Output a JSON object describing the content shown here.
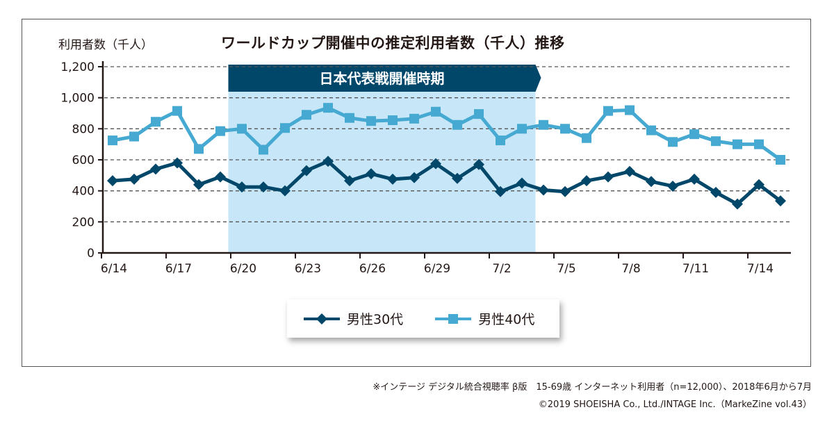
{
  "chart_data": {
    "type": "line",
    "title": "ワールドカップ開催中の推定利用者数（千人）推移",
    "ylabel": "利用者数（千人）",
    "xlabel": "",
    "ylim": [
      0,
      1200
    ],
    "yticks": [
      "0",
      "200",
      "400",
      "600",
      "800",
      "1,000",
      "1,200"
    ],
    "ytick_values": [
      0,
      200,
      400,
      600,
      800,
      1000,
      1200
    ],
    "grid": true,
    "x": [
      "6/14",
      "6/15",
      "6/16",
      "6/17",
      "6/18",
      "6/19",
      "6/20",
      "6/21",
      "6/22",
      "6/23",
      "6/24",
      "6/25",
      "6/26",
      "6/27",
      "6/28",
      "6/29",
      "6/30",
      "7/1",
      "7/2",
      "7/3",
      "7/4",
      "7/5",
      "7/6",
      "7/7",
      "7/8",
      "7/9",
      "7/10",
      "7/11",
      "7/12",
      "7/13",
      "7/14",
      "7/15"
    ],
    "xticks": [
      "6/14",
      "6/17",
      "6/20",
      "6/23",
      "6/26",
      "6/29",
      "7/2",
      "7/5",
      "7/8",
      "7/11",
      "7/14"
    ],
    "series": [
      {
        "name": "男性30代",
        "color": "#00476a",
        "marker": "diamond",
        "values": [
          465,
          475,
          540,
          580,
          440,
          490,
          425,
          425,
          400,
          530,
          590,
          465,
          510,
          475,
          485,
          575,
          480,
          570,
          395,
          450,
          405,
          395,
          465,
          490,
          525,
          460,
          430,
          475,
          390,
          315,
          440,
          335
        ]
      },
      {
        "name": "男性40代",
        "color": "#46a9d2",
        "marker": "square",
        "values": [
          725,
          750,
          845,
          915,
          670,
          785,
          800,
          665,
          805,
          890,
          935,
          870,
          850,
          855,
          865,
          910,
          825,
          895,
          725,
          800,
          825,
          800,
          740,
          915,
          920,
          790,
          715,
          765,
          720,
          700,
          700,
          600
        ]
      }
    ],
    "annotation": {
      "label": "日本代表戦開催時期",
      "start_index": 5.5,
      "end_index": 19.5,
      "band_color": "#c7e7f8",
      "banner_color": "#00476a"
    },
    "legend_position": "bottom-center"
  },
  "notes": {
    "source": "※インテージ デジタル統合視聴率 β版　15-69歳 インターネット利用者（n=12,000）、2018年6月から7月",
    "copyright": "©2019 SHOEISHA Co., Ltd./INTAGE Inc.（MarkeZine vol.43）"
  }
}
